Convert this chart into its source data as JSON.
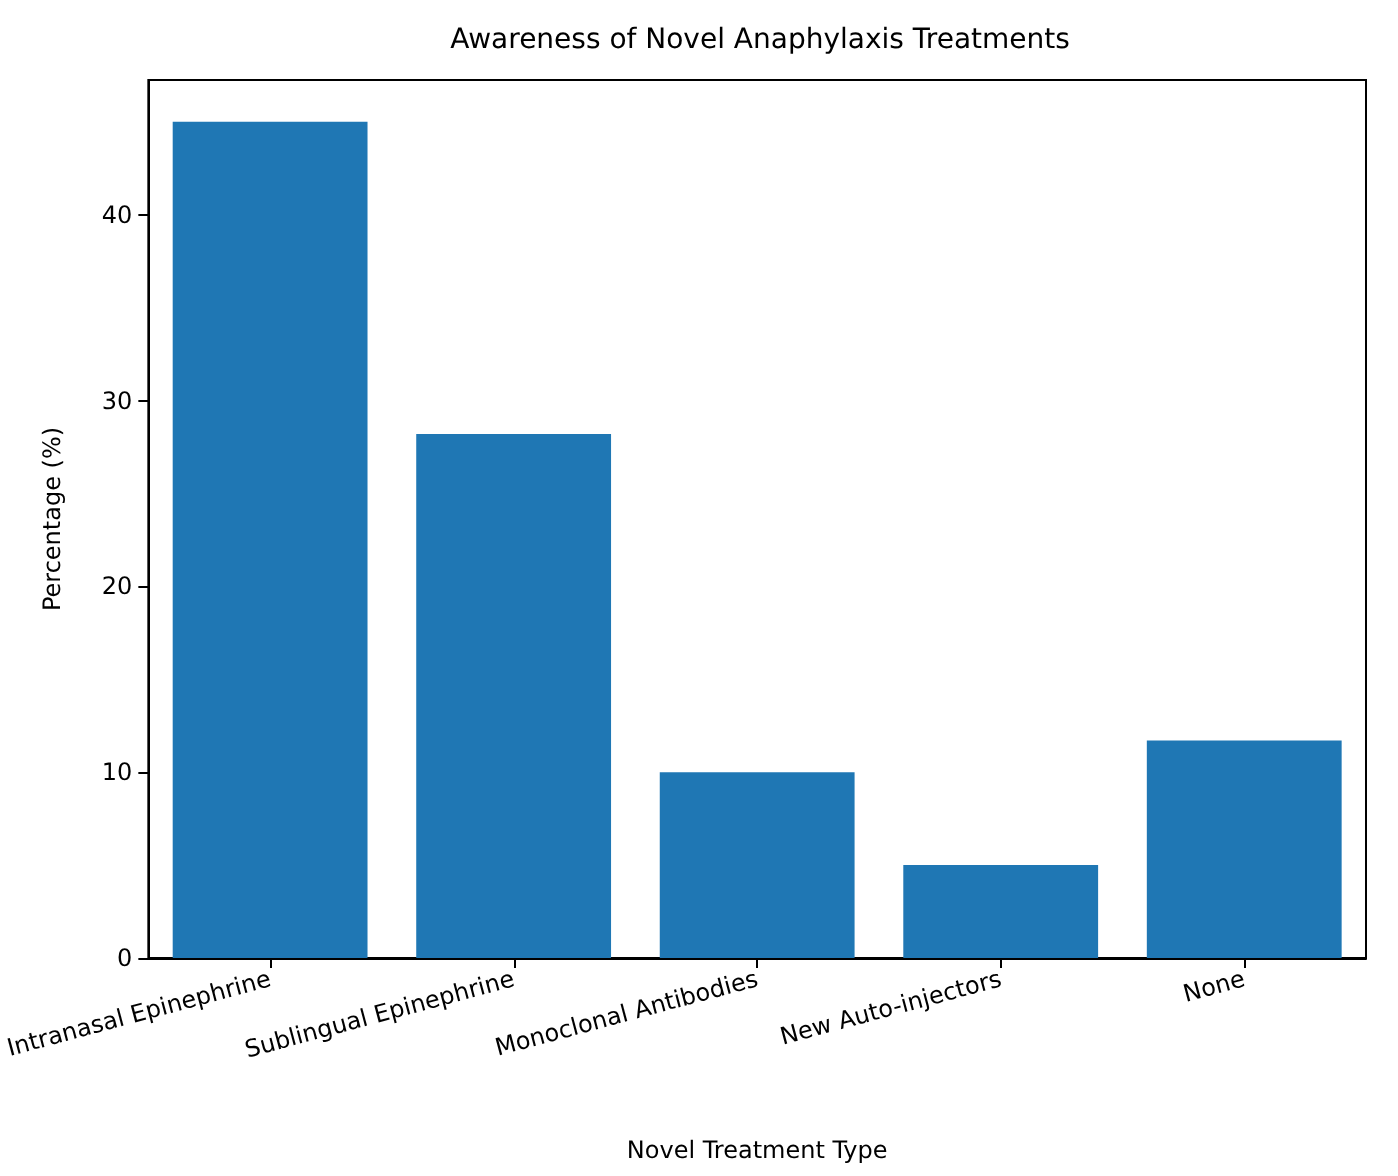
{
  "chart_data": {
    "type": "bar",
    "title": "Awareness of Novel Anaphylaxis Treatments",
    "xlabel": "Novel Treatment Type",
    "ylabel": "Percentage (%)",
    "categories": [
      "Intranasal Epinephrine",
      "Sublingual Epinephrine",
      "Monoclonal Antibodies",
      "New Auto-injectors",
      "None"
    ],
    "values": [
      45,
      28.2,
      10,
      5,
      11.7
    ],
    "color": "#1f77b4",
    "ylim": [
      0,
      47.25
    ],
    "yticks": [
      0,
      10,
      20,
      30,
      40
    ],
    "grid": false
  }
}
